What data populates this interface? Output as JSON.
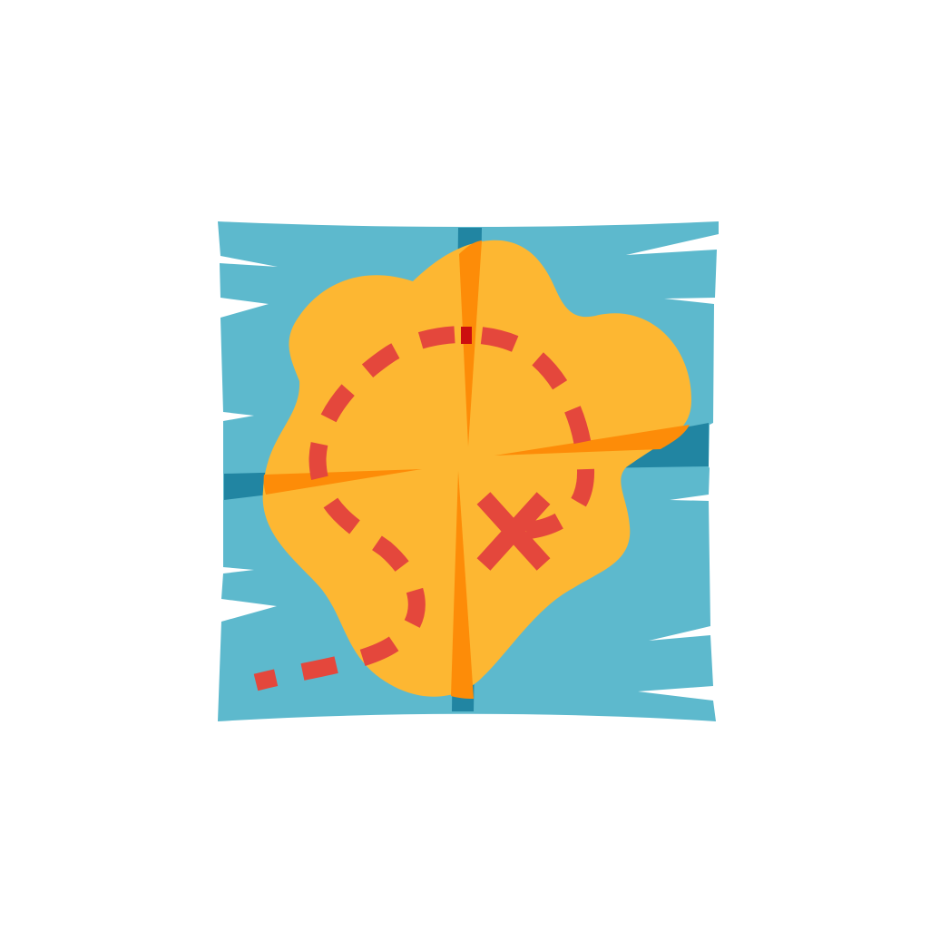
{
  "illustration": {
    "subject": "treasure-map-icon",
    "colors": {
      "background": "#ffffff",
      "sea": "#5db9cd",
      "sea_fold": "#2185a2",
      "island": "#fdb732",
      "island_fold": "#fd8c08",
      "route": "#e4473c",
      "route_on_fold": "#cc0f0f"
    }
  }
}
